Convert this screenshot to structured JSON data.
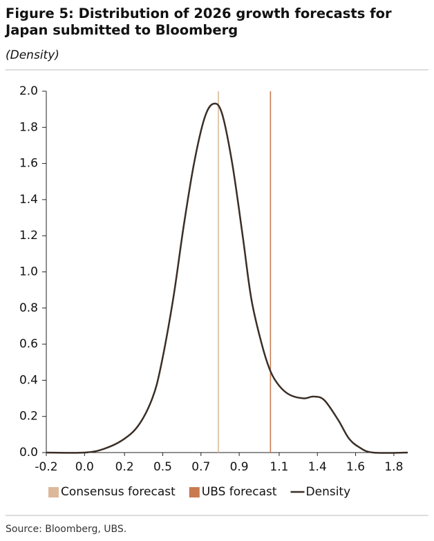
{
  "chart_data": {
    "type": "line",
    "title": "Figure 5: Distribution of 2026 growth forecasts for Japan submitted to Bloomberg",
    "subtitle": "(Density)",
    "source": "Source: Bloomberg, UBS.",
    "xlim": [
      -0.2,
      1.88
    ],
    "ylim": [
      0,
      2
    ],
    "xticks": [
      -0.2,
      {
        "value": 0.02,
        "label": "0.0"
      },
      {
        "value": 0.25,
        "label": "0.2"
      },
      {
        "value": 0.47,
        "label": "0.5"
      },
      {
        "value": 0.69,
        "label": "0.7"
      },
      {
        "value": 0.91,
        "label": "0.9"
      },
      {
        "value": 1.14,
        "label": "1.1"
      },
      {
        "value": 1.36,
        "label": "1.4"
      },
      {
        "value": 1.58,
        "label": "1.6"
      },
      1.8
    ],
    "yticks": [
      {
        "value": 0,
        "label": "0.0"
      },
      0.2,
      0.4,
      0.6,
      0.8,
      {
        "value": 1,
        "label": "1.0"
      },
      1.2,
      1.4,
      1.6,
      1.8,
      {
        "value": 2,
        "label": "2.0"
      }
    ],
    "vlines": [
      {
        "name": "Consensus forecast",
        "color": "#dcb99a",
        "x": 0.79
      },
      {
        "name": "UBS forecast",
        "color": "#c97a50",
        "x": 1.09
      }
    ],
    "series": [
      {
        "name": "Density",
        "color": "#3a2e26",
        "x": [
          -0.2,
          0.02,
          0.13,
          0.24,
          0.33,
          0.41,
          0.46,
          0.53,
          0.59,
          0.65,
          0.71,
          0.76,
          0.81,
          0.87,
          0.93,
          0.98,
          1.04,
          1.09,
          1.14,
          1.2,
          1.28,
          1.34,
          1.4,
          1.48,
          1.54,
          1.6,
          1.68,
          1.88
        ],
        "values": [
          0,
          0,
          0.02,
          0.07,
          0.15,
          0.3,
          0.48,
          0.85,
          1.25,
          1.6,
          1.85,
          1.93,
          1.88,
          1.6,
          1.2,
          0.85,
          0.6,
          0.45,
          0.37,
          0.32,
          0.3,
          0.31,
          0.29,
          0.18,
          0.08,
          0.03,
          0,
          0
        ]
      }
    ]
  }
}
